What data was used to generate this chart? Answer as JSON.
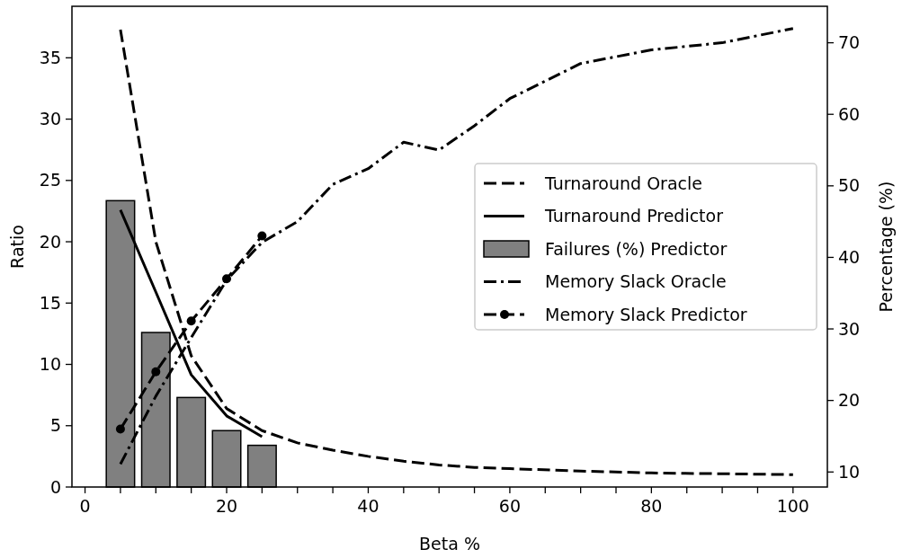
{
  "chart_data": {
    "type": "line",
    "xlabel": "Beta %",
    "ylabel": "Ratio",
    "y2label": "Percentage (%)",
    "xlim": [
      -1.85,
      104.85
    ],
    "xticks": [
      0,
      {
        "value": 5,
        "label": null
      },
      20,
      {
        "value": 10,
        "label": null
      },
      {
        "value": 15,
        "label": null
      },
      {
        "value": 25,
        "label": null
      },
      {
        "value": 30,
        "label": null
      },
      {
        "value": 35,
        "label": null
      },
      40,
      {
        "value": 45,
        "label": null
      },
      {
        "value": 50,
        "label": null
      },
      {
        "value": 55,
        "label": null
      },
      60,
      {
        "value": 65,
        "label": null
      },
      {
        "value": 70,
        "label": null
      },
      {
        "value": 75,
        "label": null
      },
      80,
      {
        "value": 85,
        "label": null
      },
      {
        "value": 90,
        "label": null
      },
      {
        "value": 95,
        "label": null
      },
      100
    ],
    "ylim": [
      0,
      39.2
    ],
    "yticks": [
      0,
      5,
      10,
      15,
      20,
      25,
      30,
      35
    ],
    "y2lim": [
      7.9,
      75.1
    ],
    "y2ticks": [
      10,
      20,
      30,
      40,
      50,
      60,
      70
    ],
    "legend": "right",
    "grid": false,
    "series": [
      {
        "name": "Turnaround Oracle",
        "line_style": "dashed",
        "color": "#000000",
        "x": [
          5,
          10,
          15,
          20,
          25,
          30,
          35,
          40,
          45,
          50,
          55,
          60,
          70,
          80,
          90,
          100
        ],
        "values": [
          37.3,
          20.0,
          10.7,
          6.4,
          4.6,
          3.6,
          3.0,
          2.5,
          2.1,
          1.8,
          1.6,
          1.5,
          1.3,
          1.15,
          1.08,
          1.01
        ]
      },
      {
        "name": "Turnaround Predictor",
        "line_style": "solid",
        "color": "#000000",
        "x": [
          5,
          10,
          15,
          20,
          25
        ],
        "values": [
          22.6,
          15.9,
          9.15,
          5.8,
          4.1
        ]
      },
      {
        "name": "Failures (%) Predictor",
        "type": "bar",
        "color": "#808080",
        "x": [
          5,
          10,
          15,
          20,
          25
        ],
        "values": [
          23.35,
          12.6,
          7.3,
          4.6,
          3.4
        ]
      },
      {
        "name": "Memory Slack Oracle",
        "line_style": "dashdot",
        "axis": "y2",
        "color": "#000000",
        "x": [
          5,
          10,
          15,
          20,
          25,
          30,
          35,
          40,
          45,
          50,
          55,
          60,
          70,
          80,
          90,
          100
        ],
        "values": [
          11.1,
          20.6,
          28.8,
          36.8,
          42.1,
          45.0,
          50.2,
          52.4,
          56.1,
          55.0,
          58.4,
          62.2,
          67.1,
          69.0,
          70.0,
          72.0
        ]
      },
      {
        "name": "Memory Slack Predictor",
        "line_style": "dashed",
        "marker": "circle",
        "axis": "y2",
        "color": "#000000",
        "x": [
          5,
          10,
          15,
          20,
          25
        ],
        "values": [
          16.0,
          24.0,
          31.1,
          37.0,
          43.0
        ]
      }
    ]
  }
}
